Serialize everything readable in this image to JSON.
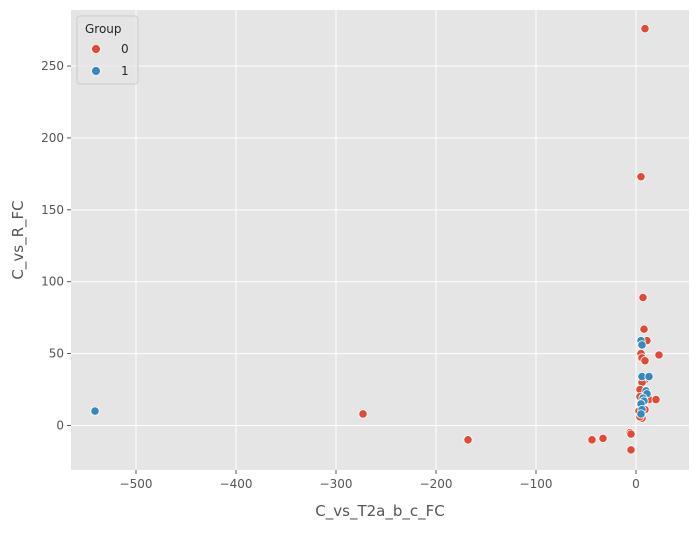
{
  "chart_data": {
    "type": "scatter",
    "title": "",
    "xlabel": "C_vs_T2a_b_c_FC",
    "ylabel": "C_vs_R_FC",
    "xlim": [
      -565,
      53
    ],
    "ylim": [
      -31,
      289
    ],
    "xticks": [
      -500,
      -400,
      -300,
      -200,
      -100,
      0
    ],
    "xtick_labels": [
      "−500",
      "−400",
      "−300",
      "−200",
      "−100",
      "0"
    ],
    "yticks": [
      0,
      50,
      100,
      150,
      200,
      250
    ],
    "ytick_labels": [
      "0",
      "50",
      "100",
      "150",
      "200",
      "250"
    ],
    "grid": true,
    "legend": {
      "title": "Group",
      "placement": "top-left",
      "entries": [
        {
          "label": "0",
          "color": "#E24A33"
        },
        {
          "label": "1",
          "color": "#348ABD"
        }
      ]
    },
    "series": [
      {
        "group": "0",
        "color": "#E24A33",
        "points": [
          [
            9,
            276
          ],
          [
            5,
            173
          ],
          [
            7,
            89
          ],
          [
            8,
            67
          ],
          [
            11,
            59
          ],
          [
            23,
            49
          ],
          [
            5,
            50
          ],
          [
            6,
            47
          ],
          [
            9,
            45
          ],
          [
            9,
            32
          ],
          [
            6,
            30
          ],
          [
            4,
            25
          ],
          [
            10,
            22
          ],
          [
            4,
            20
          ],
          [
            7,
            19
          ],
          [
            13,
            18
          ],
          [
            20,
            18
          ],
          [
            8,
            17
          ],
          [
            6,
            14
          ],
          [
            5,
            12
          ],
          [
            9,
            11
          ],
          [
            3,
            10
          ],
          [
            5,
            7
          ],
          [
            6,
            5
          ],
          [
            4,
            6
          ],
          [
            -273,
            8
          ],
          [
            -168,
            -10
          ],
          [
            -33,
            -9
          ],
          [
            -44,
            -10
          ],
          [
            -6,
            -5
          ],
          [
            -5,
            -6
          ],
          [
            -5,
            -17
          ]
        ]
      },
      {
        "group": "1",
        "color": "#348ABD",
        "points": [
          [
            5,
            59
          ],
          [
            6,
            56
          ],
          [
            6,
            34
          ],
          [
            13,
            34
          ],
          [
            10,
            24
          ],
          [
            11,
            22
          ],
          [
            7,
            19
          ],
          [
            8,
            17
          ],
          [
            5,
            15
          ],
          [
            6,
            11
          ],
          [
            5,
            8
          ],
          [
            -541,
            10
          ]
        ]
      }
    ]
  }
}
